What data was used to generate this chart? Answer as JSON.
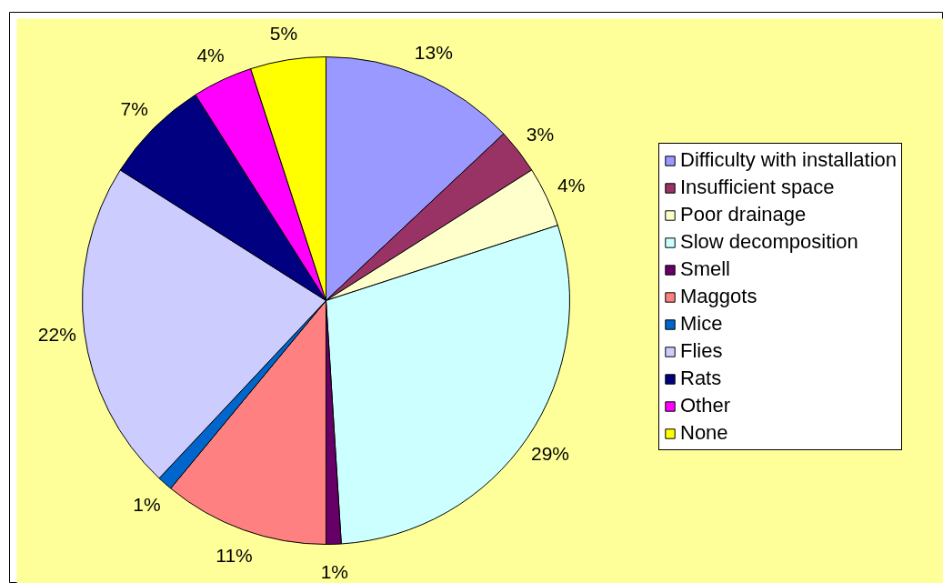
{
  "chart_data": {
    "type": "pie",
    "categories": [
      "Difficulty with installation",
      "Insufficient space",
      "Poor drainage",
      "Slow decomposition",
      "Smell",
      "Maggots",
      "Mice",
      "Flies",
      "Rats",
      "Other",
      "None"
    ],
    "values": [
      13,
      3,
      4,
      29,
      1,
      11,
      1,
      22,
      7,
      4,
      5
    ],
    "colors": [
      "#9999ff",
      "#993366",
      "#ffffcc",
      "#ccffff",
      "#660066",
      "#ff8080",
      "#0066cc",
      "#ccccff",
      "#000080",
      "#ff00ff",
      "#ffff00"
    ],
    "value_labels": [
      "13%",
      "3%",
      "4%",
      "29%",
      "1%",
      "11%",
      "1%",
      "22%",
      "7%",
      "4%",
      "5%"
    ],
    "legend": "right"
  }
}
